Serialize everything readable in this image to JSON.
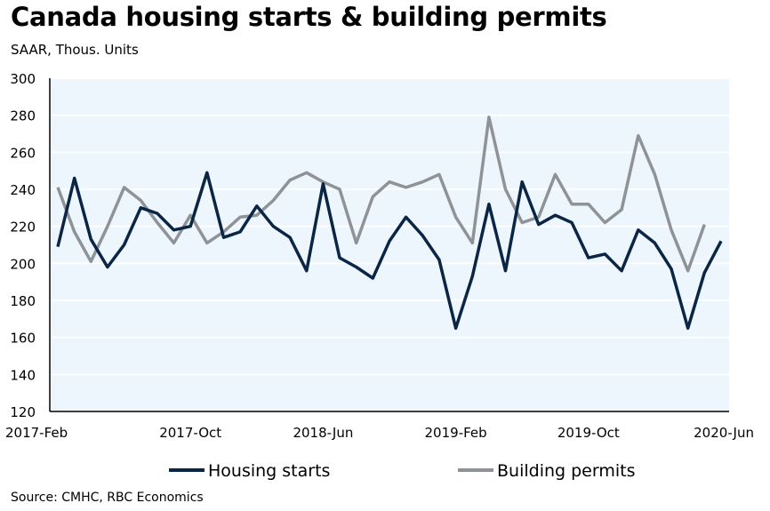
{
  "chart_data": {
    "type": "line",
    "title": "Canada housing starts & building permits",
    "subtitle": "SAAR, Thous. Units",
    "source": "Source: CMHC, RBC Economics",
    "xlabel": "",
    "ylabel": "",
    "ylim": [
      120,
      300
    ],
    "yticks": [
      "120",
      "140",
      "160",
      "180",
      "200",
      "220",
      "240",
      "260",
      "280",
      "300"
    ],
    "xtick_labels": [
      "2017-Feb",
      "2017-Oct",
      "2018-Jun",
      "2019-Feb",
      "2019-Oct",
      "2020-Jun"
    ],
    "xtick_index": [
      0,
      8,
      16,
      24,
      32,
      40
    ],
    "x": [
      "2017-Feb",
      "2017-Mar",
      "2017-Apr",
      "2017-May",
      "2017-Jun",
      "2017-Jul",
      "2017-Aug",
      "2017-Sep",
      "2017-Oct",
      "2017-Nov",
      "2017-Dec",
      "2018-Jan",
      "2018-Feb",
      "2018-Mar",
      "2018-Apr",
      "2018-May",
      "2018-Jun",
      "2018-Jul",
      "2018-Aug",
      "2018-Sep",
      "2018-Oct",
      "2018-Nov",
      "2018-Dec",
      "2019-Jan",
      "2019-Feb",
      "2019-Mar",
      "2019-Apr",
      "2019-May",
      "2019-Jun",
      "2019-Jul",
      "2019-Aug",
      "2019-Sep",
      "2019-Oct",
      "2019-Nov",
      "2019-Dec",
      "2020-Jan",
      "2020-Feb",
      "2020-Mar",
      "2020-Apr",
      "2020-May",
      "2020-Jun"
    ],
    "series": [
      {
        "name": "Housing starts",
        "color": "#0b2545",
        "values": [
          209,
          246,
          213,
          198,
          210,
          230,
          227,
          218,
          220,
          249,
          214,
          217,
          231,
          220,
          214,
          196,
          243,
          203,
          198,
          192,
          212,
          225,
          215,
          202,
          165,
          193,
          232,
          196,
          244,
          221,
          226,
          222,
          203,
          205,
          196,
          218,
          211,
          197,
          165,
          195,
          212
        ]
      },
      {
        "name": "Building permits",
        "color": "#8f9398",
        "values": [
          241,
          217,
          201,
          220,
          241,
          234,
          222,
          211,
          226,
          211,
          217,
          225,
          226,
          234,
          245,
          249,
          244,
          240,
          211,
          236,
          244,
          241,
          244,
          248,
          225,
          211,
          279,
          240,
          222,
          225,
          248,
          232,
          232,
          222,
          229,
          269,
          248,
          218,
          196,
          221,
          null
        ]
      }
    ],
    "grid": true,
    "legend": "bottom"
  }
}
